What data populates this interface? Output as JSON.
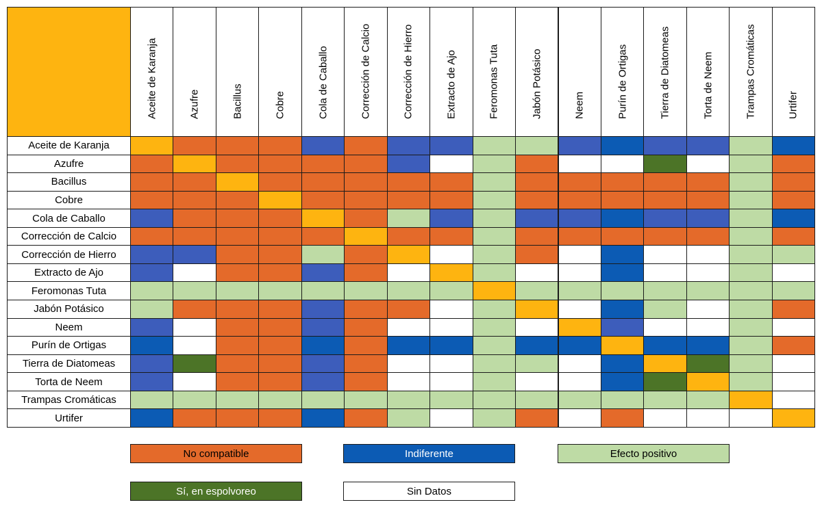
{
  "colors": {
    "O": "#E46A2A",
    "B": "#3D5DBB",
    "D": "#0C5BB4",
    "L": "#BEDBA5",
    "G": "#4C7427",
    "Y": "#FEB410",
    "W": "#FFFFFF",
    "corner": "#FEB410"
  },
  "items": [
    "Aceite de Karanja",
    "Azufre",
    "Bacillus",
    "Cobre",
    "Cola de Caballo",
    "Corrección de Calcio",
    "Corrección de Hierro",
    "Extracto de Ajo",
    "Feromonas Tuta",
    "Jabón Potásico",
    "Neem",
    "Purín de Ortigas",
    "Tierra de Diatomeas",
    "Torta de Neem",
    "Trampas Cromáticas",
    "Urtifer"
  ],
  "matrix": [
    "YOOOBOBBLLBDBBLD",
    "OYOOOOBWLOWWGWLO",
    "OOYOOOOOLOOOOOLO",
    "OOOYOOOOLOOOOOLO",
    "BOOOYOLBLBBDBBLD",
    "OOOOOYOOLOOOOOLO",
    "BBOOLOYWLOWDWWLL",
    "BWOOBOWYLWWDWWLW",
    "LLLLLLLLYLLLLLLL",
    "LOOOBOOWLYWDLWLO",
    "BWOOBOWWLWYBWWLW",
    "DWOODODDLDDYDDLO",
    "BGOOBOWWLLWDYGLW",
    "BWOOBOWWLWWDGYLW",
    "LLLLLLLLLLLLLLYW",
    "DOOODOLWLOWOWWWY"
  ],
  "legend": [
    {
      "label": "No compatible",
      "code": "O",
      "color": "#E46A2A"
    },
    {
      "label": "Indiferente",
      "code": "D",
      "color": "#0C5BB4",
      "text_color": "#FFFFFF"
    },
    {
      "label": "Efecto positivo",
      "code": "L",
      "color": "#BEDBA5"
    },
    {
      "label": "Sí, en espolvoreo",
      "code": "G",
      "color": "#4C7427",
      "text_color": "#FFFFFF"
    },
    {
      "label": "Sin Datos",
      "code": "W",
      "color": "#FFFFFF"
    }
  ]
}
